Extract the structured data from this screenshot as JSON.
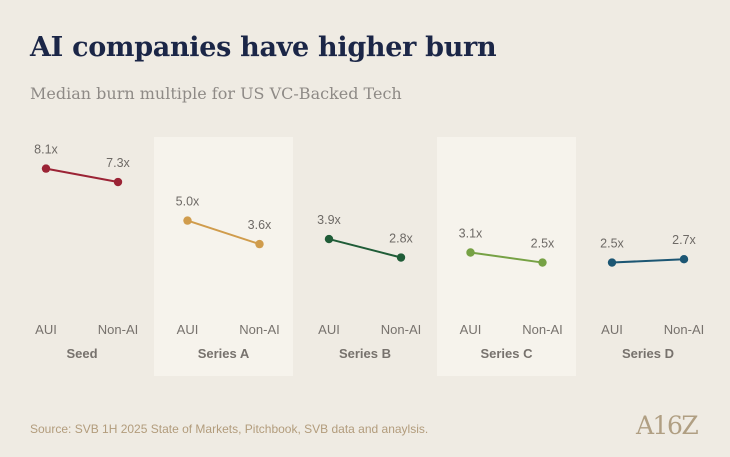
{
  "title": "AI companies have higher burn",
  "subtitle": "Median burn multiple for US VC-Backed Tech",
  "source": "Source: SVB 1H 2025 State of Markets, Pitchbook, SVB data and anaylsis.",
  "logo": "A16Z",
  "colors": {
    "background": "#efebe3",
    "panel": "#f6f3ec",
    "title": "#1b2647",
    "seed": "#9b2335",
    "series_a": "#d09c4c",
    "series_b": "#1f5c37",
    "series_c": "#76a144",
    "series_d": "#1c5673"
  },
  "chart_data": {
    "type": "line",
    "title": "AI companies have higher burn",
    "subtitle": "Median burn multiple for US VC-Backed Tech",
    "categories": [
      "AUI",
      "Non-AI"
    ],
    "ylim": [
      0,
      9
    ],
    "groups": [
      {
        "name": "Seed",
        "values": [
          8.1,
          7.3
        ],
        "labels": [
          "8.1x",
          "7.3x"
        ],
        "color": "#9b2335",
        "shaded": false
      },
      {
        "name": "Series A",
        "values": [
          5.0,
          3.6
        ],
        "labels": [
          "5.0x",
          "3.6x"
        ],
        "color": "#d09c4c",
        "shaded": true
      },
      {
        "name": "Series B",
        "values": [
          3.9,
          2.8
        ],
        "labels": [
          "3.9x",
          "2.8x"
        ],
        "color": "#1f5c37",
        "shaded": false
      },
      {
        "name": "Series C",
        "values": [
          3.1,
          2.5
        ],
        "labels": [
          "3.1x",
          "2.5x"
        ],
        "color": "#76a144",
        "shaded": true
      },
      {
        "name": "Series D",
        "values": [
          2.5,
          2.7
        ],
        "labels": [
          "2.5x",
          "2.7x"
        ],
        "color": "#1c5673",
        "shaded": false
      }
    ]
  }
}
